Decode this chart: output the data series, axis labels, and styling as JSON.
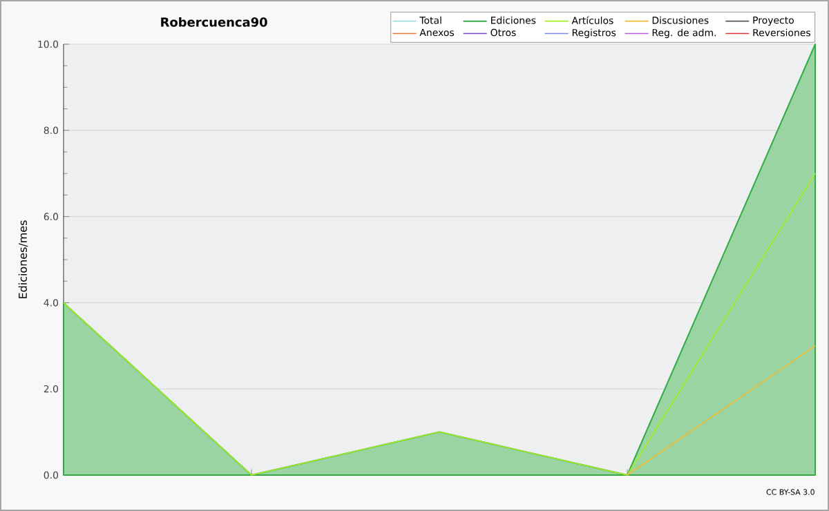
{
  "chart_data": {
    "type": "line",
    "title": "Robercuenca90",
    "ylabel": "Ediciones/mes",
    "categories": [
      null,
      null,
      null,
      null,
      null
    ],
    "series": [
      {
        "name": "Total",
        "color": "#99dddd",
        "values": [
          null,
          null,
          null,
          null,
          null
        ]
      },
      {
        "name": "Ediciones",
        "color": "#33aa44",
        "type": "area",
        "values": [
          4,
          0,
          1,
          0,
          10
        ]
      },
      {
        "name": "Artículos",
        "color": "#aaee22",
        "values": [
          4,
          0,
          1,
          0,
          7
        ]
      },
      {
        "name": "Discusiones",
        "color": "#eebb33",
        "values": [
          null,
          null,
          null,
          0,
          3
        ]
      },
      {
        "name": "Proyecto",
        "color": "#555555",
        "values": [
          null,
          null,
          null,
          null,
          null
        ]
      },
      {
        "name": "Anexos",
        "color": "#ee7733",
        "values": [
          null,
          null,
          null,
          null,
          null
        ]
      },
      {
        "name": "Otros",
        "color": "#7744cc",
        "values": [
          null,
          null,
          null,
          null,
          null
        ]
      },
      {
        "name": "Registros",
        "color": "#7788ee",
        "values": [
          null,
          null,
          null,
          null,
          null
        ]
      },
      {
        "name": "Reg. de adm.",
        "color": "#bb55dd",
        "values": [
          null,
          null,
          null,
          null,
          null
        ]
      },
      {
        "name": "Reversiones",
        "color": "#dd3333",
        "values": [
          null,
          null,
          null,
          null,
          null
        ]
      }
    ],
    "ylim": [
      0,
      10
    ],
    "yticks": [
      {
        "value": 0,
        "label": "0.0"
      },
      {
        "value": 2,
        "label": "2.0"
      },
      {
        "value": 4,
        "label": "4.0"
      },
      {
        "value": 6,
        "label": "6.0"
      },
      {
        "value": 8,
        "label": "8.0"
      },
      {
        "value": 10,
        "label": "10.0"
      }
    ],
    "grid": "y",
    "legend": "top right",
    "annotations": [
      "CC BY-SA 3.0"
    ]
  }
}
